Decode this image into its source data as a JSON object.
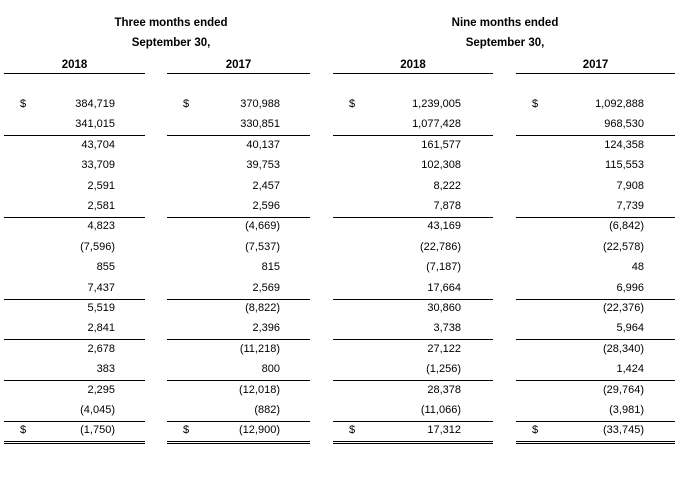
{
  "header": {
    "three_months_line1": "Three months ended",
    "three_months_line2": "September 30,",
    "nine_months_line1": "Nine months ended",
    "nine_months_line2": "September 30,"
  },
  "years": [
    "2018",
    "2017",
    "2018",
    "2017"
  ],
  "currency_symbol": "$",
  "rows": [
    [
      "384,719",
      "370,988",
      "1,239,005",
      "1,092,888"
    ],
    [
      "341,015",
      "330,851",
      "1,077,428",
      "968,530"
    ],
    [
      "43,704",
      "40,137",
      "161,577",
      "124,358"
    ],
    [
      "33,709",
      "39,753",
      "102,308",
      "115,553"
    ],
    [
      "2,591",
      "2,457",
      "8,222",
      "7,908"
    ],
    [
      "2,581",
      "2,596",
      "7,878",
      "7,739"
    ],
    [
      "4,823",
      "(4,669)",
      "43,169",
      "(6,842)"
    ],
    [
      "(7,596)",
      "(7,537)",
      "(22,786)",
      "(22,578)"
    ],
    [
      "855",
      "815",
      "(7,187)",
      "48"
    ],
    [
      "7,437",
      "2,569",
      "17,664",
      "6,996"
    ],
    [
      "5,519",
      "(8,822)",
      "30,860",
      "(22,376)"
    ],
    [
      "2,841",
      "2,396",
      "3,738",
      "5,964"
    ],
    [
      "2,678",
      "(11,218)",
      "27,122",
      "(28,340)"
    ],
    [
      "383",
      "800",
      "(1,256)",
      "1,424"
    ],
    [
      "2,295",
      "(12,018)",
      "28,378",
      "(29,764)"
    ],
    [
      "(4,045)",
      "(882)",
      "(11,066)",
      "(3,981)"
    ],
    [
      "(1,750)",
      "(12,900)",
      "17,312",
      "(33,745)"
    ]
  ]
}
